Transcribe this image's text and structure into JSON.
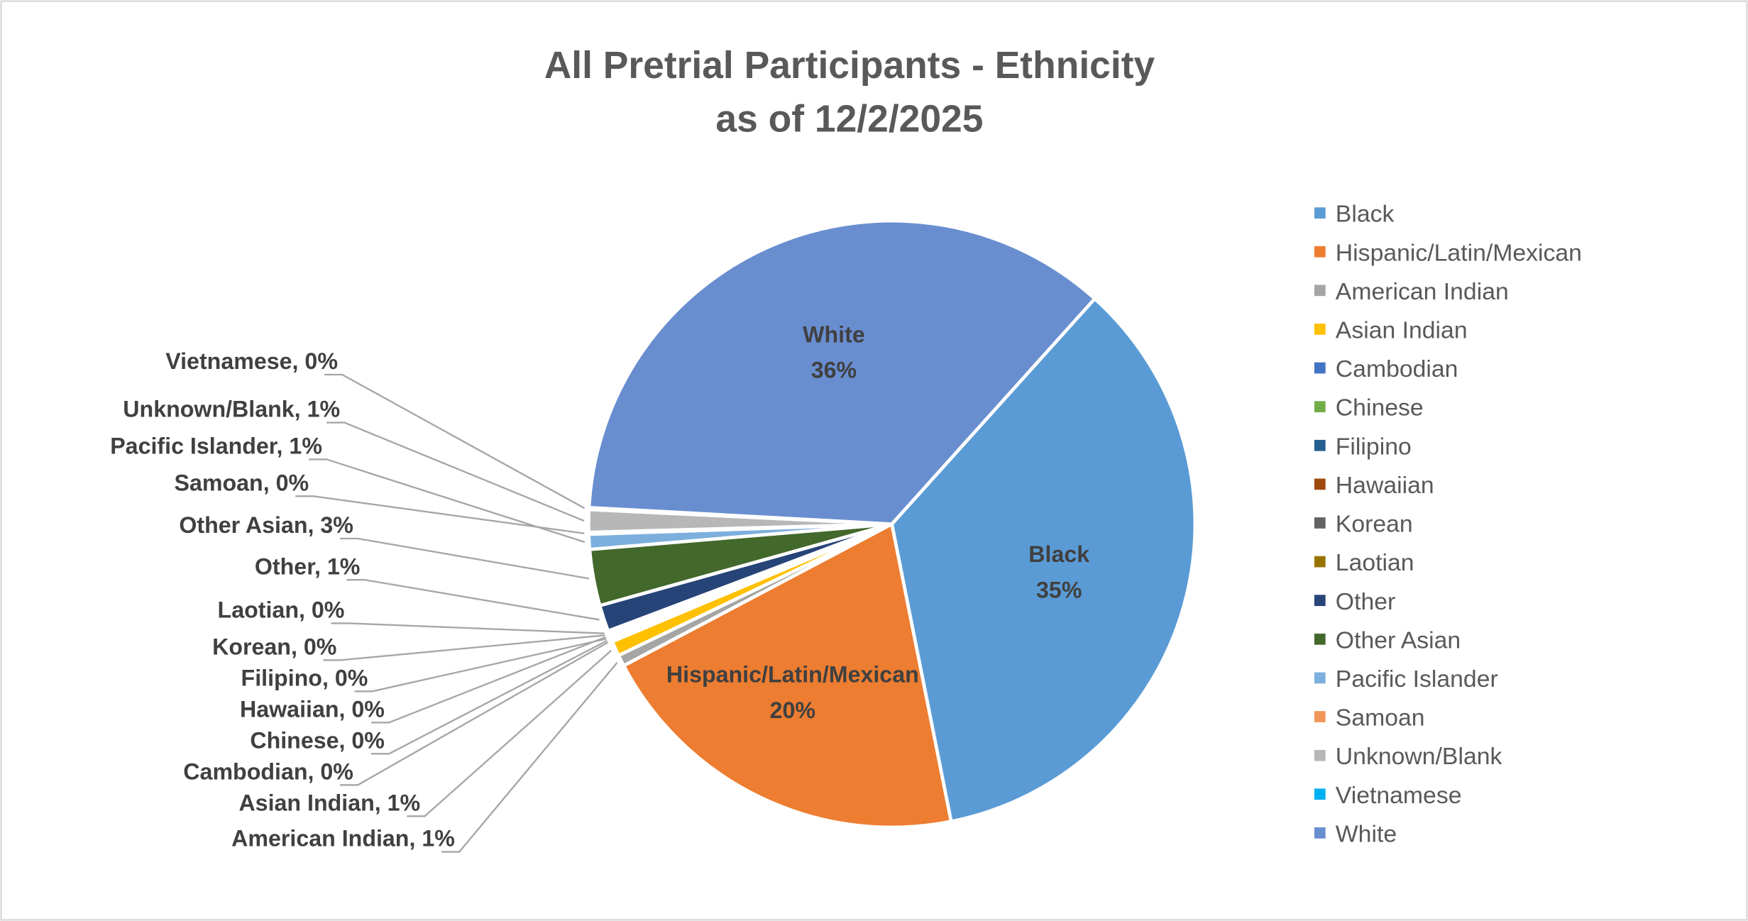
{
  "chart_data": {
    "type": "pie",
    "title": "All Pretrial Participants - Ethnicity",
    "subtitle": "as of 12/2/2025",
    "legend_position": "right",
    "start_angle_deg": 42,
    "slices": [
      {
        "name": "Black",
        "value": 35.2,
        "label": "35%",
        "color": "#5B9BD5"
      },
      {
        "name": "Hispanic/Latin/Mexican",
        "value": 20.4,
        "label": "20%",
        "color": "#ED7D31"
      },
      {
        "name": "American Indian",
        "value": 0.6,
        "label": "1%",
        "color": "#A5A5A5"
      },
      {
        "name": "Asian Indian",
        "value": 0.8,
        "label": "1%",
        "color": "#FFC000"
      },
      {
        "name": "Cambodian",
        "value": 0.1,
        "label": "0%",
        "color": "#4472C4"
      },
      {
        "name": "Chinese",
        "value": 0.1,
        "label": "0%",
        "color": "#70AD47"
      },
      {
        "name": "Filipino",
        "value": 0.1,
        "label": "0%",
        "color": "#255E91"
      },
      {
        "name": "Hawaiian",
        "value": 0.1,
        "label": "0%",
        "color": "#9E480E"
      },
      {
        "name": "Korean",
        "value": 0.1,
        "label": "0%",
        "color": "#636363"
      },
      {
        "name": "Laotian",
        "value": 0.1,
        "label": "0%",
        "color": "#997300"
      },
      {
        "name": "Other",
        "value": 1.4,
        "label": "1%",
        "color": "#264478"
      },
      {
        "name": "Other Asian",
        "value": 3.0,
        "label": "3%",
        "color": "#43682B"
      },
      {
        "name": "Pacific Islander",
        "value": 0.8,
        "label": "1%",
        "color": "#7CAFDD"
      },
      {
        "name": "Samoan",
        "value": 0.1,
        "label": "0%",
        "color": "#F1975A"
      },
      {
        "name": "Unknown/Blank",
        "value": 1.2,
        "label": "1%",
        "color": "#B7B7B7"
      },
      {
        "name": "Vietnamese",
        "value": 0.1,
        "label": "0%",
        "color": "#00B0F0"
      },
      {
        "name": "White",
        "value": 35.8,
        "label": "36%",
        "color": "#698ED0"
      }
    ]
  }
}
